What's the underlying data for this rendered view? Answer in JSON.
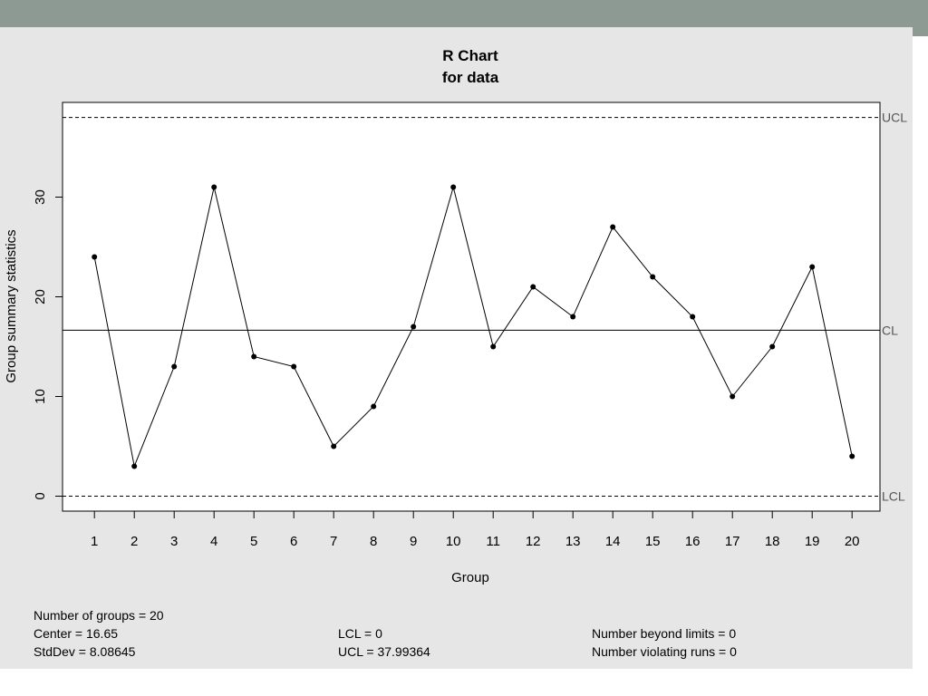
{
  "chart_data": {
    "type": "line",
    "title": "R Chart",
    "subtitle": "for data",
    "xlabel": "Group",
    "ylabel": "Group summary statistics",
    "x": [
      1,
      2,
      3,
      4,
      5,
      6,
      7,
      8,
      9,
      10,
      11,
      12,
      13,
      14,
      15,
      16,
      17,
      18,
      19,
      20
    ],
    "values": [
      24,
      3,
      13,
      31,
      14,
      13,
      5,
      9,
      17,
      31,
      15,
      21,
      18,
      27,
      22,
      18,
      10,
      15,
      23,
      4
    ],
    "ylim": [
      -1.5,
      39.5
    ],
    "yticks": [
      0,
      10,
      20,
      30
    ],
    "xlim": [
      0.2,
      20.7
    ],
    "limits": {
      "UCL": 37.99364,
      "CL": 16.65,
      "LCL": 0
    },
    "limit_labels": [
      "UCL",
      "CL",
      "LCL"
    ],
    "grid": false
  },
  "stats": {
    "num_groups": "Number of groups = 20",
    "center": "Center = 16.65",
    "stddev": "StdDev = 8.08645",
    "lcl": "LCL = 0",
    "ucl": "UCL = 37.99364",
    "beyond_limits": "Number beyond limits = 0",
    "violating_runs": "Number violating runs = 0"
  },
  "colors": {
    "header_bar": "#8d9a94",
    "panel": "#e6e6e6",
    "plot_bg": "#ffffff",
    "line": "#000000",
    "limit_label": "#555555"
  }
}
